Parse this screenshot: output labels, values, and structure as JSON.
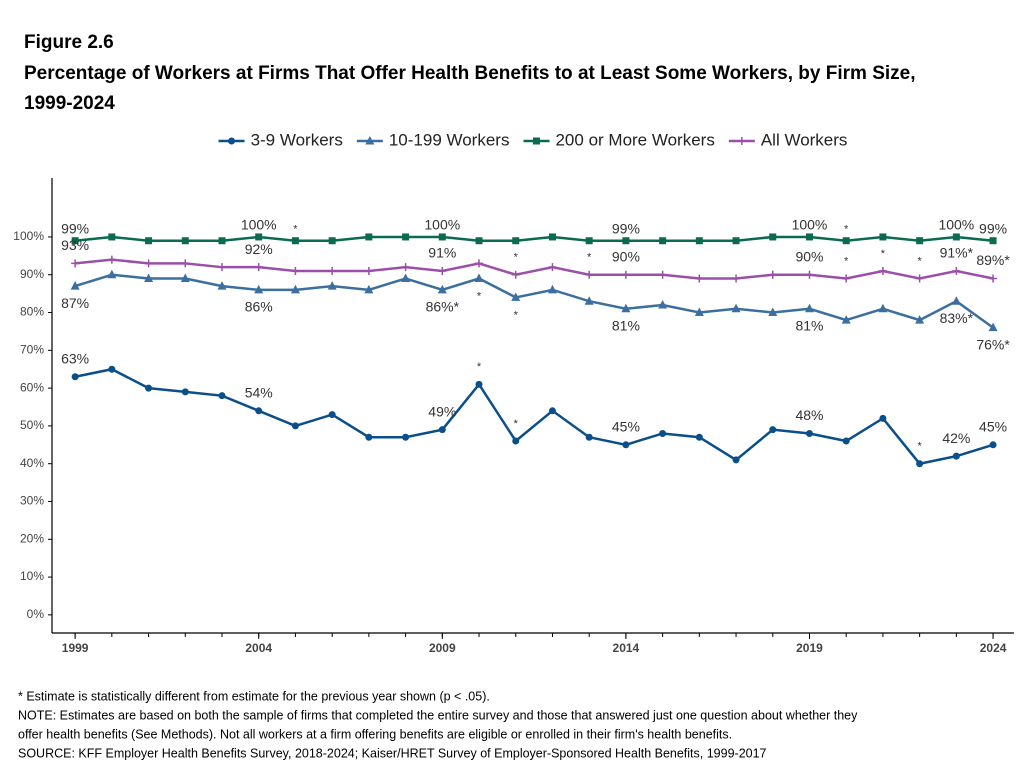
{
  "chart_data": {
    "type": "line",
    "figure_label": "Figure 2.6",
    "title": "Percentage of Workers at Firms That Offer Health Benefits to at Least Some Workers, by Firm Size, 1999-2024",
    "x": [
      1999,
      2000,
      2001,
      2002,
      2003,
      2004,
      2005,
      2006,
      2007,
      2008,
      2009,
      2010,
      2011,
      2012,
      2013,
      2014,
      2015,
      2016,
      2017,
      2018,
      2019,
      2020,
      2021,
      2022,
      2023,
      2024
    ],
    "xlim": [
      1998.37,
      2024.57
    ],
    "xticks": [
      1999,
      2004,
      2009,
      2014,
      2019,
      2024
    ],
    "ylim": [
      -4.8,
      115.6
    ],
    "yticks": [
      {
        "value": 0,
        "label": "0%"
      },
      {
        "value": 10,
        "label": "10%"
      },
      {
        "value": 20,
        "label": "20%"
      },
      {
        "value": 30,
        "label": "30%"
      },
      {
        "value": 40,
        "label": "40%"
      },
      {
        "value": 50,
        "label": "50%"
      },
      {
        "value": 60,
        "label": "60%"
      },
      {
        "value": 70,
        "label": "70%"
      },
      {
        "value": 80,
        "label": "80%"
      },
      {
        "value": 90,
        "label": "90%"
      },
      {
        "value": 100,
        "label": "100%"
      }
    ],
    "legend_position": "top",
    "series": [
      {
        "name": "3-9 Workers",
        "color": "#0b4f8a",
        "marker": "circle",
        "label_side": "above",
        "values": [
          63,
          65,
          60,
          59,
          58,
          54,
          50,
          53,
          47,
          47,
          49,
          61,
          46,
          54,
          47,
          45,
          48,
          47,
          41,
          49,
          48,
          46,
          52,
          40,
          42,
          45
        ],
        "value_labels": [
          "63%",
          null,
          null,
          null,
          null,
          "54%",
          null,
          null,
          null,
          null,
          "49%",
          "*",
          "*",
          null,
          null,
          "45%",
          null,
          null,
          null,
          null,
          "48%",
          null,
          null,
          "*",
          "42%",
          "45%"
        ]
      },
      {
        "name": "10-199 Workers",
        "color": "#3b6f9f",
        "marker": "triangle",
        "label_side": "below",
        "values": [
          87,
          90,
          89,
          89,
          87,
          86,
          86,
          87,
          86,
          89,
          86,
          89,
          84,
          86,
          83,
          81,
          82,
          80,
          81,
          80,
          81,
          78,
          81,
          78,
          83,
          76
        ],
        "value_labels": [
          "87%",
          null,
          null,
          null,
          null,
          "86%",
          null,
          null,
          null,
          null,
          "86%*",
          "*",
          "*",
          null,
          null,
          "81%",
          null,
          null,
          null,
          null,
          "81%",
          null,
          null,
          null,
          "83%*",
          "76%*"
        ]
      },
      {
        "name": "200 or More Workers",
        "color": "#0b6b50",
        "marker": "square",
        "label_side": "top",
        "values": [
          99,
          100,
          99,
          99,
          99,
          100,
          99,
          99,
          100,
          100,
          100,
          99,
          99,
          100,
          99,
          99,
          99,
          99,
          99,
          100,
          100,
          99,
          100,
          99,
          100,
          99
        ],
        "value_labels": [
          "99%",
          null,
          null,
          null,
          null,
          "100%",
          "*",
          null,
          null,
          null,
          "100%",
          null,
          null,
          null,
          null,
          "99%",
          null,
          null,
          null,
          null,
          "100%",
          "*",
          null,
          null,
          "100%",
          "99%"
        ]
      },
      {
        "name": "All Workers",
        "color": "#9b4fa8",
        "marker": "plus",
        "label_side": "above",
        "values": [
          93,
          94,
          93,
          93,
          92,
          92,
          91,
          91,
          91,
          92,
          91,
          93,
          90,
          92,
          90,
          90,
          90,
          89,
          89,
          90,
          90,
          89,
          91,
          89,
          91,
          89
        ],
        "value_labels": [
          "93%",
          null,
          null,
          null,
          null,
          "92%",
          null,
          null,
          null,
          null,
          "91%",
          null,
          "*",
          null,
          "*",
          "90%",
          null,
          null,
          null,
          null,
          "90%",
          "*",
          "*",
          "*",
          "91%*",
          "89%*"
        ]
      }
    ],
    "notes": [
      "* Estimate is statistically different from estimate for the previous year shown (p < .05).",
      "NOTE: Estimates are based on both the sample of firms that completed the entire survey and those that answered just one question about whether they",
      "offer health benefits (See Methods). Not all workers at a firm offering benefits are eligible or enrolled in their firm's health benefits.",
      "SOURCE: KFF Employer Health Benefits Survey, 2018-2024; Kaiser/HRET Survey of Employer-Sponsored Health Benefits, 1999-2017"
    ]
  }
}
